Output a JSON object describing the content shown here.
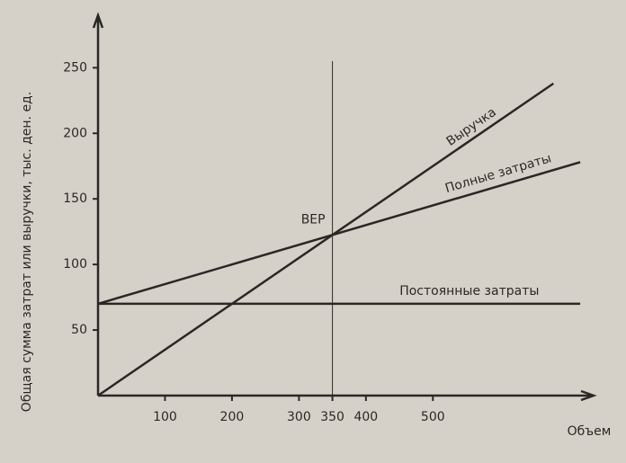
{
  "chart_data": {
    "type": "line",
    "y_label": "Общая сумма затрат или выручки, тыс. ден. ед.",
    "x_label": "Объем",
    "series": [
      {
        "name": "Выручка",
        "color": "#2a2826",
        "x": [
          0,
          680
        ],
        "values": [
          0,
          238
        ]
      },
      {
        "name": "Полные затраты",
        "color": "#2a2826",
        "x": [
          0,
          720
        ],
        "values": [
          70,
          178
        ]
      },
      {
        "name": "Постоянные затраты",
        "color": "#2a2826",
        "x": [
          0,
          720
        ],
        "values": [
          70,
          70
        ]
      }
    ],
    "bep": {
      "x": 350,
      "label": "BEP"
    },
    "xlim": [
      0,
      740
    ],
    "ylim": [
      0,
      290
    ],
    "xticks": [
      100,
      200,
      300,
      350,
      400,
      500
    ],
    "yticks": [
      50,
      100,
      150,
      200,
      250
    ]
  }
}
